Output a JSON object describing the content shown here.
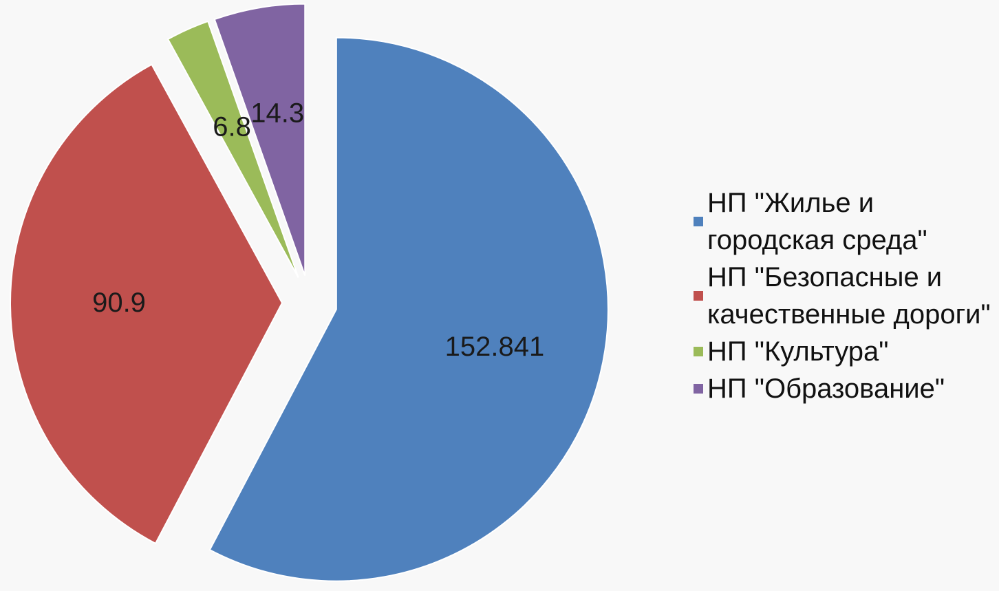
{
  "chart_data": {
    "type": "pie",
    "categories": [
      "НП \"Жилье и городская среда\"",
      "НП \"Безопасные и качественные дороги\"",
      "НП \"Культура\"",
      "НП \"Образование\""
    ],
    "values": [
      152.841,
      90.9,
      6.8,
      14.3
    ],
    "colors": [
      "#4f81bd",
      "#c0504d",
      "#9bbb59",
      "#8064a2"
    ],
    "legend": "right"
  }
}
